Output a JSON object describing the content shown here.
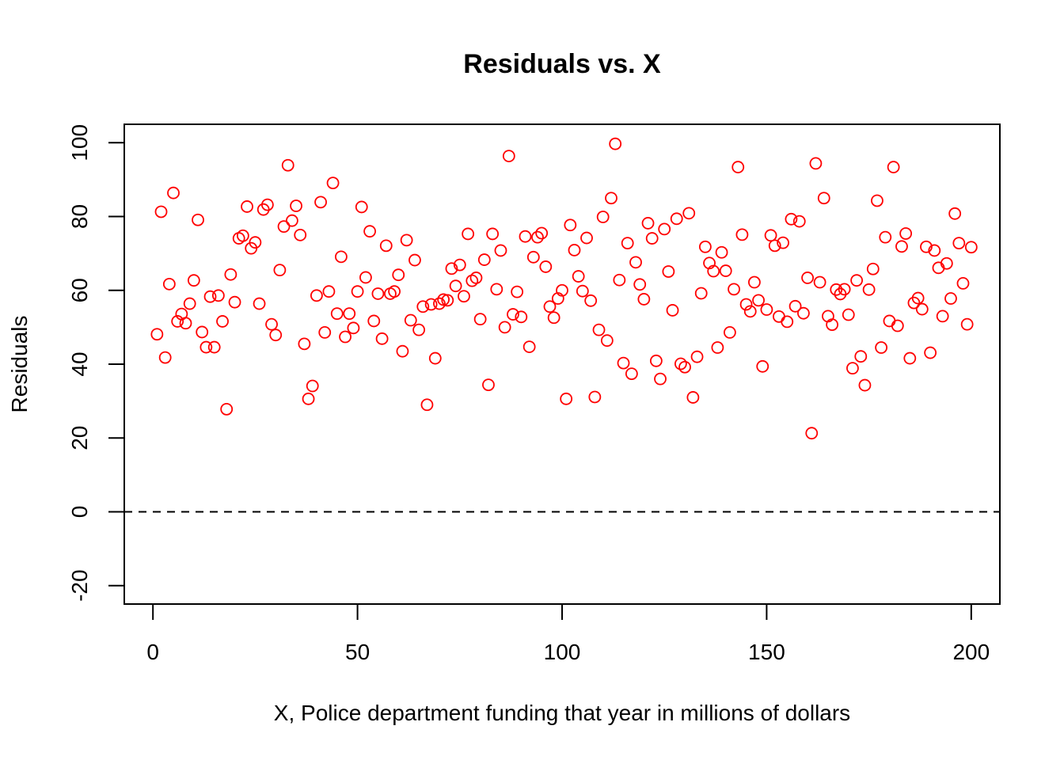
{
  "chart_data": {
    "type": "scatter",
    "title": "Residuals vs. X",
    "xlabel": "X, Police department funding that year in millions of dollars",
    "ylabel": "Residuals",
    "xlim": [
      -7,
      207
    ],
    "ylim": [
      -25,
      105
    ],
    "x_ticks": [
      0,
      50,
      100,
      150,
      200
    ],
    "y_ticks": [
      -20,
      0,
      20,
      40,
      60,
      80,
      100
    ],
    "x_tick_labels": [
      "0",
      "50",
      "100",
      "150",
      "200"
    ],
    "y_tick_labels": [
      "-20",
      "0",
      "20",
      "40",
      "60",
      "80",
      "100"
    ],
    "reference_line": {
      "y": 0,
      "style": "dashed",
      "color": "#000000"
    },
    "point_style": {
      "shape": "open-circle",
      "color": "#ff0000"
    },
    "grid": false,
    "x": [
      1,
      2,
      3,
      4,
      5,
      6,
      7,
      8,
      9,
      10,
      11,
      12,
      13,
      14,
      15,
      16,
      17,
      18,
      19,
      20,
      21,
      22,
      23,
      24,
      25,
      26,
      27,
      28,
      29,
      30,
      31,
      32,
      33,
      34,
      35,
      36,
      37,
      38,
      39,
      40,
      41,
      42,
      43,
      44,
      45,
      46,
      47,
      48,
      49,
      50,
      51,
      52,
      53,
      54,
      55,
      56,
      57,
      58,
      59,
      60,
      61,
      62,
      63,
      64,
      65,
      66,
      67,
      68,
      69,
      70,
      71,
      72,
      73,
      74,
      75,
      76,
      77,
      78,
      79,
      80,
      81,
      82,
      83,
      84,
      85,
      86,
      87,
      88,
      89,
      90,
      91,
      92,
      93,
      94,
      95,
      96,
      97,
      98,
      99,
      100,
      101,
      102,
      103,
      104,
      105,
      106,
      107,
      108,
      109,
      110,
      111,
      112,
      113,
      114,
      115,
      116,
      117,
      118,
      119,
      120,
      121,
      122,
      123,
      124,
      125,
      126,
      127,
      128,
      129,
      130,
      131,
      132,
      133,
      134,
      135,
      136,
      137,
      138,
      139,
      140,
      141,
      142,
      143,
      144,
      145,
      146,
      147,
      148,
      149,
      150,
      151,
      152,
      153,
      154,
      155,
      156,
      157,
      158,
      159,
      160,
      161,
      162,
      163,
      164,
      165,
      166,
      167,
      168,
      169,
      170,
      171,
      172,
      173,
      174,
      175,
      176,
      177,
      178,
      179,
      180,
      181,
      182,
      183,
      184,
      185,
      186,
      187,
      188,
      189,
      190,
      191,
      192,
      193,
      194,
      195,
      196,
      197,
      198,
      199,
      200
    ],
    "y": [
      48.1,
      81.3,
      41.8,
      61.7,
      86.4,
      51.6,
      53.6,
      51.1,
      56.4,
      62.7,
      79.1,
      48.7,
      44.6,
      58.3,
      44.6,
      58.6,
      51.6,
      27.8,
      64.3,
      56.8,
      74.1,
      74.8,
      82.7,
      71.4,
      73.0,
      56.4,
      81.9,
      83.2,
      50.8,
      47.9,
      65.5,
      77.3,
      93.9,
      78.9,
      82.9,
      75.0,
      45.5,
      30.6,
      34.1,
      58.6,
      83.9,
      48.6,
      59.7,
      89.1,
      53.7,
      69.1,
      47.4,
      53.7,
      49.8,
      59.7,
      82.6,
      63.5,
      76.0,
      51.7,
      59.1,
      46.9,
      72.1,
      59.1,
      59.7,
      64.2,
      43.5,
      73.6,
      51.9,
      68.2,
      49.3,
      55.6,
      29.0,
      56.2,
      41.6,
      56.4,
      57.5,
      57.3,
      65.9,
      61.2,
      66.9,
      58.4,
      75.3,
      62.6,
      63.4,
      52.2,
      68.3,
      34.4,
      75.3,
      60.3,
      70.8,
      50.0,
      96.4,
      53.5,
      59.6,
      52.8,
      74.6,
      44.7,
      69.0,
      74.4,
      75.5,
      66.4,
      55.6,
      52.6,
      57.8,
      60.0,
      30.6,
      77.7,
      70.9,
      63.8,
      59.8,
      74.2,
      57.2,
      31.1,
      49.3,
      79.9,
      46.4,
      85.0,
      99.7,
      62.8,
      40.3,
      72.8,
      37.4,
      67.6,
      61.6,
      57.6,
      78.2,
      74.1,
      40.9,
      36.0,
      76.6,
      65.1,
      54.6,
      79.4,
      40.1,
      39.2,
      80.9,
      31.0,
      42.0,
      59.2,
      71.8,
      67.4,
      65.2,
      44.5,
      70.3,
      65.3,
      48.6,
      60.3,
      93.4,
      75.1,
      56.2,
      54.3,
      62.2,
      57.3,
      39.4,
      54.8,
      74.9,
      72.1,
      52.9,
      72.9,
      51.5,
      79.3,
      55.7,
      78.7,
      53.8,
      63.4,
      21.3,
      94.4,
      62.2,
      85.0,
      53.0,
      50.7,
      60.2,
      59.0,
      60.3,
      53.4,
      38.9,
      62.7,
      42.1,
      34.3,
      60.2,
      65.8,
      84.3,
      44.5,
      74.4,
      51.7,
      93.4,
      50.4,
      71.9,
      75.4,
      41.6,
      56.6,
      57.9,
      54.9,
      71.8,
      43.1,
      70.8,
      66.1,
      53.0,
      67.3,
      57.8,
      80.8,
      72.8,
      61.9,
      50.8,
      71.7
    ]
  }
}
